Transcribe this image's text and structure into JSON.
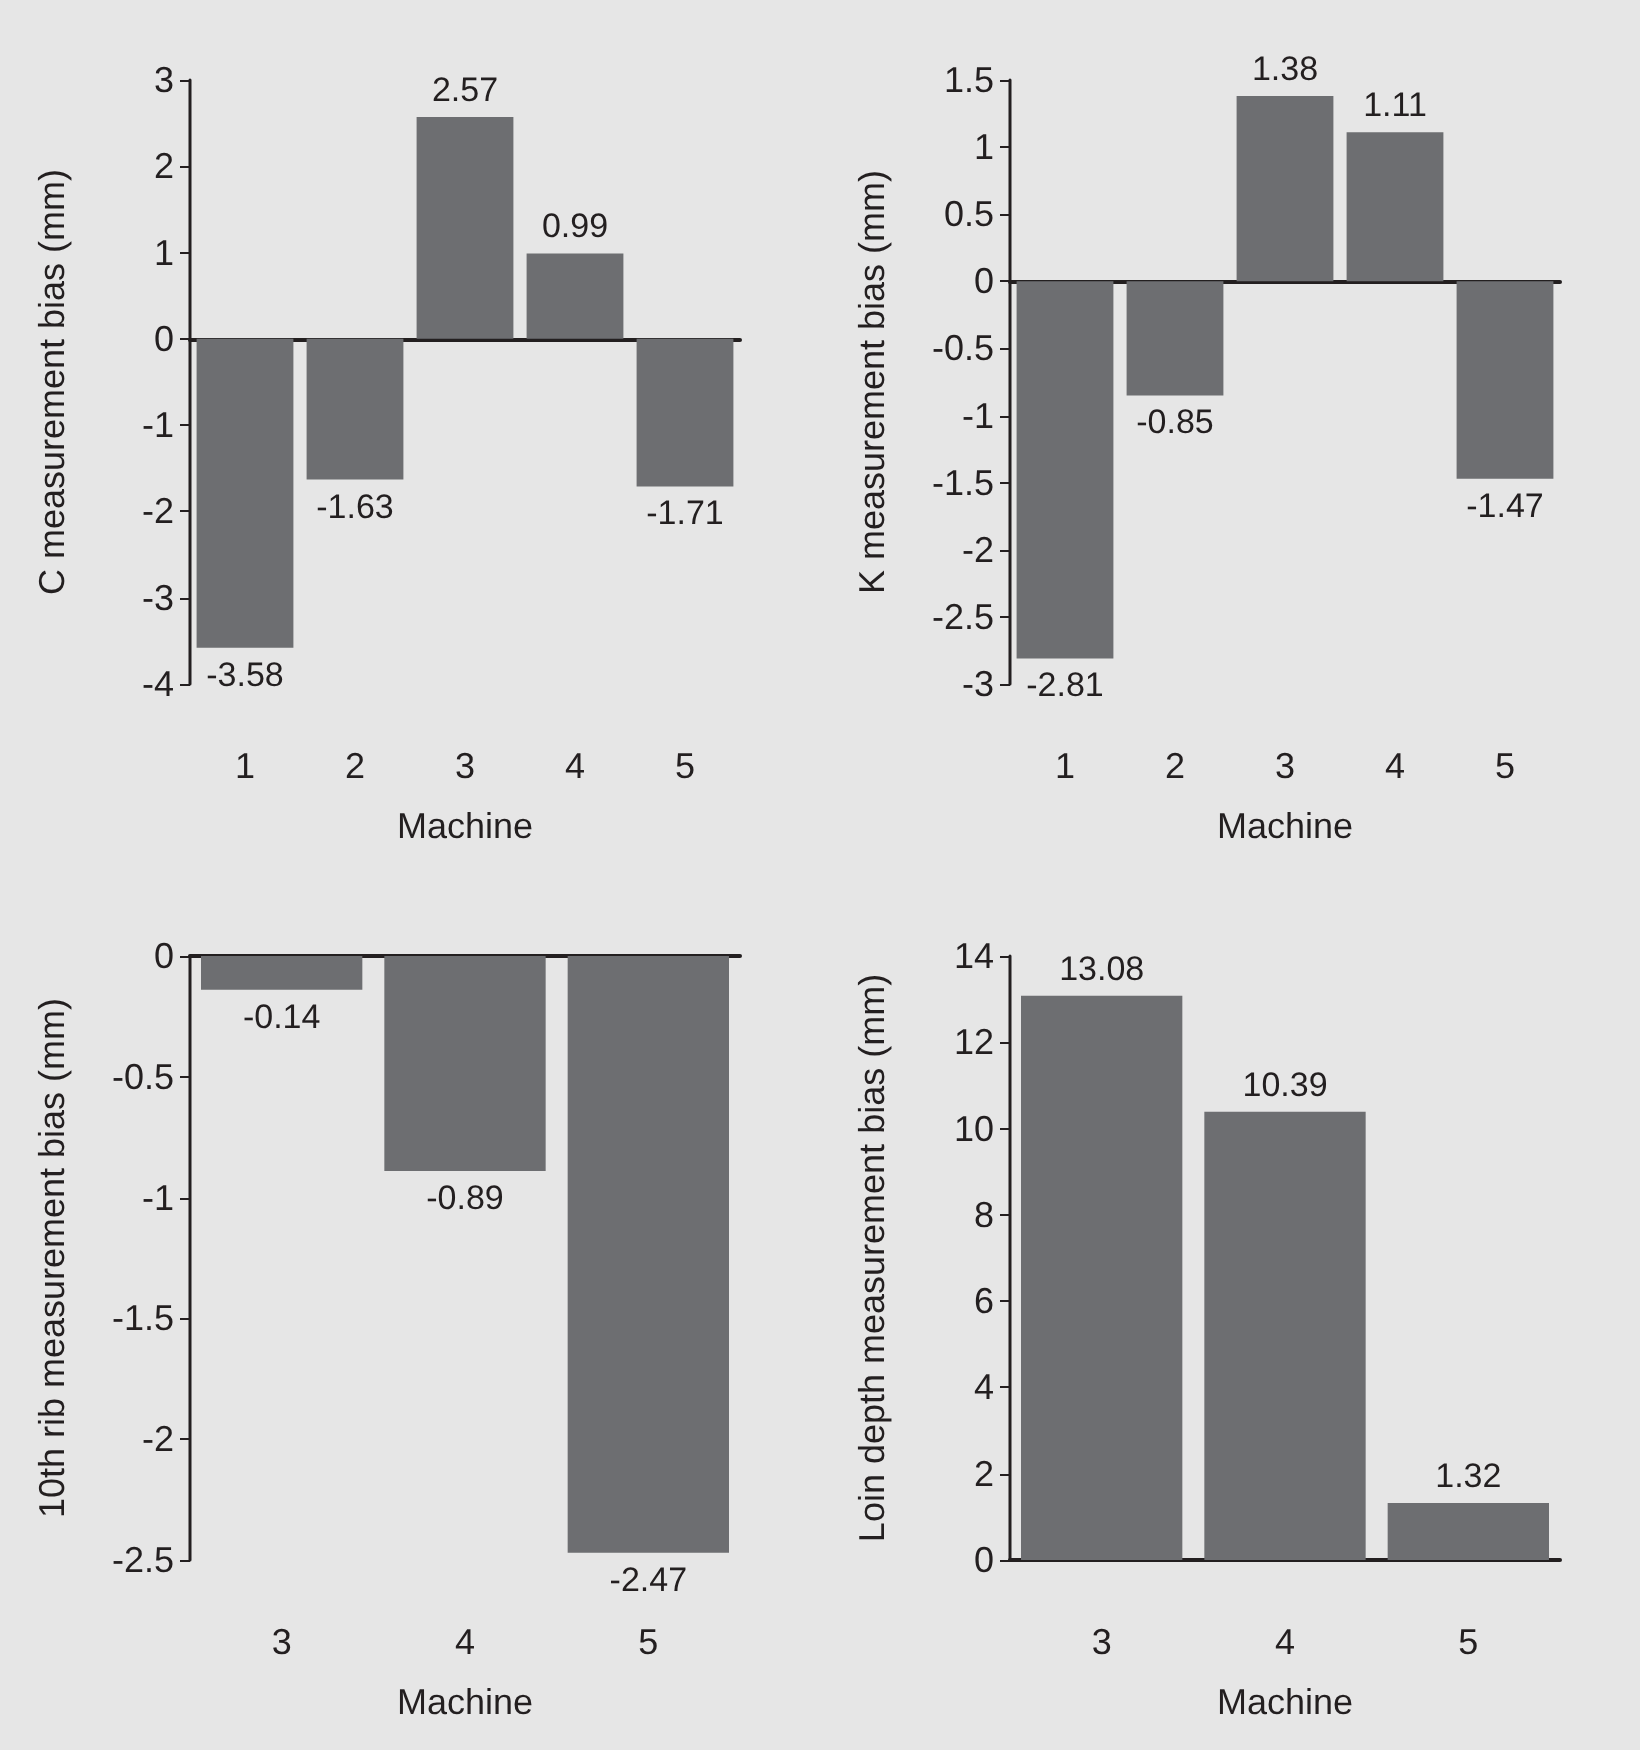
{
  "chart_data": [
    {
      "type": "bar",
      "xlabel": "Machine",
      "ylabel": "C measurement bias (mm)",
      "categories": [
        "1",
        "2",
        "3",
        "4",
        "5"
      ],
      "values": [
        -3.58,
        -1.63,
        2.57,
        0.99,
        -1.71
      ],
      "color": "#6d6e71",
      "ylim": [
        -4,
        3
      ],
      "yticks": [
        -4,
        -3,
        -2,
        -1,
        0,
        1,
        2,
        3
      ],
      "data_labels": true
    },
    {
      "type": "bar",
      "xlabel": "Machine",
      "ylabel": "K measurement bias (mm)",
      "categories": [
        "1",
        "2",
        "3",
        "4",
        "5"
      ],
      "values": [
        -2.81,
        -0.85,
        1.38,
        1.11,
        -1.47
      ],
      "color": "#6d6e71",
      "ylim": [
        -3,
        1.5
      ],
      "yticks": [
        -3,
        -2.5,
        -2,
        -1.5,
        -1,
        -0.5,
        0,
        0.5,
        1,
        1.5
      ],
      "data_labels": true
    },
    {
      "type": "bar",
      "xlabel": "Machine",
      "ylabel": "10th rib measurement bias (mm)",
      "categories": [
        "3",
        "4",
        "5"
      ],
      "values": [
        -0.14,
        -0.89,
        -2.47
      ],
      "color": "#6d6e71",
      "ylim": [
        -2.5,
        0
      ],
      "yticks": [
        -2.5,
        -2,
        -1.5,
        -1,
        -0.5,
        0
      ],
      "data_labels": true
    },
    {
      "type": "bar",
      "xlabel": "Machine",
      "ylabel": "Loin depth measurement bias (mm)",
      "categories": [
        "3",
        "4",
        "5"
      ],
      "values": [
        13.08,
        10.39,
        1.32
      ],
      "color": "#6d6e71",
      "ylim": [
        0,
        14
      ],
      "yticks": [
        0,
        2,
        4,
        6,
        8,
        10,
        12,
        14
      ],
      "data_labels": true
    }
  ]
}
